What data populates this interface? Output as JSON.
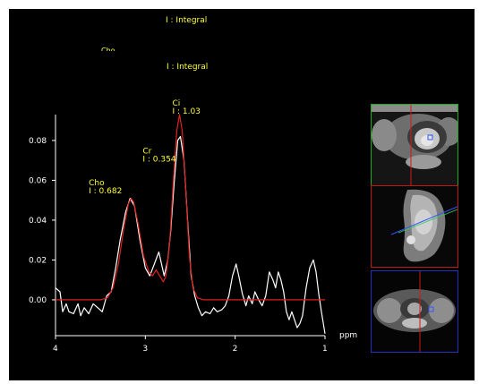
{
  "header": {
    "integral_label_1": "I : Integral",
    "integral_label_2": "I : Integral",
    "clipped_text": "Cho"
  },
  "chart_data": {
    "type": "line",
    "xlabel": "ppm",
    "ylabel": "",
    "xlim": [
      4,
      1
    ],
    "ylim": [
      -0.018,
      0.093
    ],
    "x_ticks": [
      "4",
      "3",
      "2",
      "1"
    ],
    "y_ticks": [
      "0.08",
      "0.06",
      "0.04",
      "0.02",
      "0.00"
    ],
    "series": [
      {
        "name": "Measured spectrum",
        "color": "#ffffff",
        "points": [
          [
            4.0,
            0.006
          ],
          [
            3.95,
            0.004
          ],
          [
            3.92,
            -0.006
          ],
          [
            3.88,
            -0.002
          ],
          [
            3.85,
            -0.006
          ],
          [
            3.8,
            -0.007
          ],
          [
            3.75,
            -0.002
          ],
          [
            3.72,
            -0.008
          ],
          [
            3.68,
            -0.004
          ],
          [
            3.63,
            -0.007
          ],
          [
            3.58,
            -0.002
          ],
          [
            3.53,
            -0.004
          ],
          [
            3.48,
            -0.006
          ],
          [
            3.43,
            0.002
          ],
          [
            3.38,
            0.004
          ],
          [
            3.33,
            0.016
          ],
          [
            3.28,
            0.03
          ],
          [
            3.22,
            0.044
          ],
          [
            3.17,
            0.051
          ],
          [
            3.12,
            0.047
          ],
          [
            3.06,
            0.03
          ],
          [
            3.0,
            0.016
          ],
          [
            2.95,
            0.012
          ],
          [
            2.9,
            0.018
          ],
          [
            2.85,
            0.024
          ],
          [
            2.82,
            0.018
          ],
          [
            2.79,
            0.012
          ],
          [
            2.75,
            0.02
          ],
          [
            2.72,
            0.033
          ],
          [
            2.68,
            0.058
          ],
          [
            2.64,
            0.08
          ],
          [
            2.61,
            0.082
          ],
          [
            2.57,
            0.07
          ],
          [
            2.53,
            0.04
          ],
          [
            2.49,
            0.012
          ],
          [
            2.45,
            0.002
          ],
          [
            2.41,
            -0.004
          ],
          [
            2.37,
            -0.008
          ],
          [
            2.33,
            -0.006
          ],
          [
            2.28,
            -0.007
          ],
          [
            2.24,
            -0.004
          ],
          [
            2.2,
            -0.006
          ],
          [
            2.15,
            -0.005
          ],
          [
            2.11,
            -0.003
          ],
          [
            2.07,
            0.002
          ],
          [
            2.03,
            0.012
          ],
          [
            1.99,
            0.018
          ],
          [
            1.96,
            0.012
          ],
          [
            1.92,
            0.003
          ],
          [
            1.88,
            -0.003
          ],
          [
            1.85,
            0.002
          ],
          [
            1.81,
            -0.002
          ],
          [
            1.78,
            0.004
          ],
          [
            1.74,
            0.0
          ],
          [
            1.7,
            -0.003
          ],
          [
            1.66,
            0.002
          ],
          [
            1.62,
            0.014
          ],
          [
            1.58,
            0.01
          ],
          [
            1.55,
            0.006
          ],
          [
            1.52,
            0.014
          ],
          [
            1.49,
            0.01
          ],
          [
            1.46,
            0.004
          ],
          [
            1.43,
            -0.006
          ],
          [
            1.4,
            -0.01
          ],
          [
            1.37,
            -0.006
          ],
          [
            1.34,
            -0.01
          ],
          [
            1.31,
            -0.014
          ],
          [
            1.28,
            -0.012
          ],
          [
            1.25,
            -0.008
          ],
          [
            1.21,
            0.006
          ],
          [
            1.17,
            0.016
          ],
          [
            1.13,
            0.02
          ],
          [
            1.1,
            0.014
          ],
          [
            1.07,
            0.003
          ],
          [
            1.04,
            -0.006
          ],
          [
            1.0,
            -0.017
          ]
        ]
      },
      {
        "name": "Fitted spectrum",
        "color": "#e02020",
        "points": [
          [
            4.0,
            0.0
          ],
          [
            3.6,
            0.0
          ],
          [
            3.5,
            0.0
          ],
          [
            3.42,
            0.001
          ],
          [
            3.36,
            0.006
          ],
          [
            3.3,
            0.018
          ],
          [
            3.24,
            0.036
          ],
          [
            3.19,
            0.048
          ],
          [
            3.16,
            0.051
          ],
          [
            3.13,
            0.049
          ],
          [
            3.08,
            0.038
          ],
          [
            3.02,
            0.022
          ],
          [
            2.96,
            0.014
          ],
          [
            2.92,
            0.012
          ],
          [
            2.88,
            0.015
          ],
          [
            2.84,
            0.012
          ],
          [
            2.8,
            0.009
          ],
          [
            2.77,
            0.012
          ],
          [
            2.73,
            0.028
          ],
          [
            2.69,
            0.058
          ],
          [
            2.65,
            0.085
          ],
          [
            2.62,
            0.093
          ],
          [
            2.59,
            0.085
          ],
          [
            2.55,
            0.055
          ],
          [
            2.51,
            0.022
          ],
          [
            2.47,
            0.006
          ],
          [
            2.42,
            0.001
          ],
          [
            2.35,
            0.0
          ],
          [
            1.0,
            0.0
          ]
        ]
      }
    ],
    "annotations": [
      {
        "name": "Ci",
        "integral": "I : 1.03",
        "ppm": 2.62,
        "value": 0.093
      },
      {
        "name": "Cr",
        "integral": "I : 0.354",
        "ppm": 2.95,
        "value": 0.069
      },
      {
        "name": "Cho",
        "integral": "I : 0.682",
        "ppm": 3.55,
        "value": 0.053
      }
    ]
  },
  "thumbnails": [
    {
      "name": "axial-top-view",
      "border_color": "#22aa22"
    },
    {
      "name": "sagittal-view",
      "border_color": "#c01818"
    },
    {
      "name": "axial-bottom-view",
      "border_color": "#2233bb"
    }
  ]
}
